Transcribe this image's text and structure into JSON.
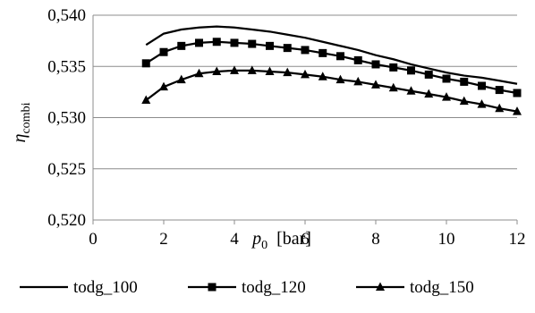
{
  "chart_data": {
    "type": "line",
    "title": "",
    "xlabel": {
      "symbol": "p",
      "subscript": "0",
      "unit": "[bar]"
    },
    "ylabel": {
      "symbol": "η",
      "subscript": "combi"
    },
    "xlim": [
      0,
      12
    ],
    "ylim": [
      0.52,
      0.54
    ],
    "xticks": [
      0,
      2,
      4,
      6,
      8,
      10,
      12
    ],
    "xtick_labels": [
      "0",
      "2",
      "4",
      "6",
      "8",
      "10",
      "12"
    ],
    "yticks": [
      0.52,
      0.525,
      0.53,
      0.535,
      0.54
    ],
    "ytick_labels": [
      "0,520",
      "0,525",
      "0,530",
      "0,535",
      "0,540"
    ],
    "grid": "horizontal",
    "legend_position": "bottom",
    "x": [
      1.5,
      2,
      2.5,
      3,
      3.5,
      4,
      4.5,
      5,
      5.5,
      6,
      6.5,
      7,
      7.5,
      8,
      8.5,
      9,
      9.5,
      10,
      10.5,
      11,
      11.5,
      12
    ],
    "series": [
      {
        "name": "todg_100",
        "marker": "none",
        "color": "#000000",
        "values": [
          0.5371,
          0.5382,
          0.5386,
          0.5388,
          0.5389,
          0.5388,
          0.5386,
          0.5384,
          0.5381,
          0.5378,
          0.5374,
          0.537,
          0.5366,
          0.5361,
          0.5357,
          0.5352,
          0.5348,
          0.5344,
          0.5341,
          0.5339,
          0.5336,
          0.5333
        ]
      },
      {
        "name": "todg_120",
        "marker": "square",
        "color": "#000000",
        "values": [
          0.5353,
          0.5364,
          0.537,
          0.5373,
          0.5374,
          0.5373,
          0.5372,
          0.537,
          0.5368,
          0.5366,
          0.5363,
          0.536,
          0.5356,
          0.5352,
          0.5349,
          0.5346,
          0.5342,
          0.5338,
          0.5335,
          0.5331,
          0.5327,
          0.5324
        ]
      },
      {
        "name": "todg_150",
        "marker": "triangle",
        "color": "#000000",
        "values": [
          0.5317,
          0.533,
          0.5337,
          0.5343,
          0.5345,
          0.5346,
          0.5346,
          0.5345,
          0.5344,
          0.5342,
          0.534,
          0.5337,
          0.5335,
          0.5332,
          0.5329,
          0.5326,
          0.5323,
          0.532,
          0.5316,
          0.5313,
          0.5309,
          0.5306
        ]
      }
    ]
  }
}
